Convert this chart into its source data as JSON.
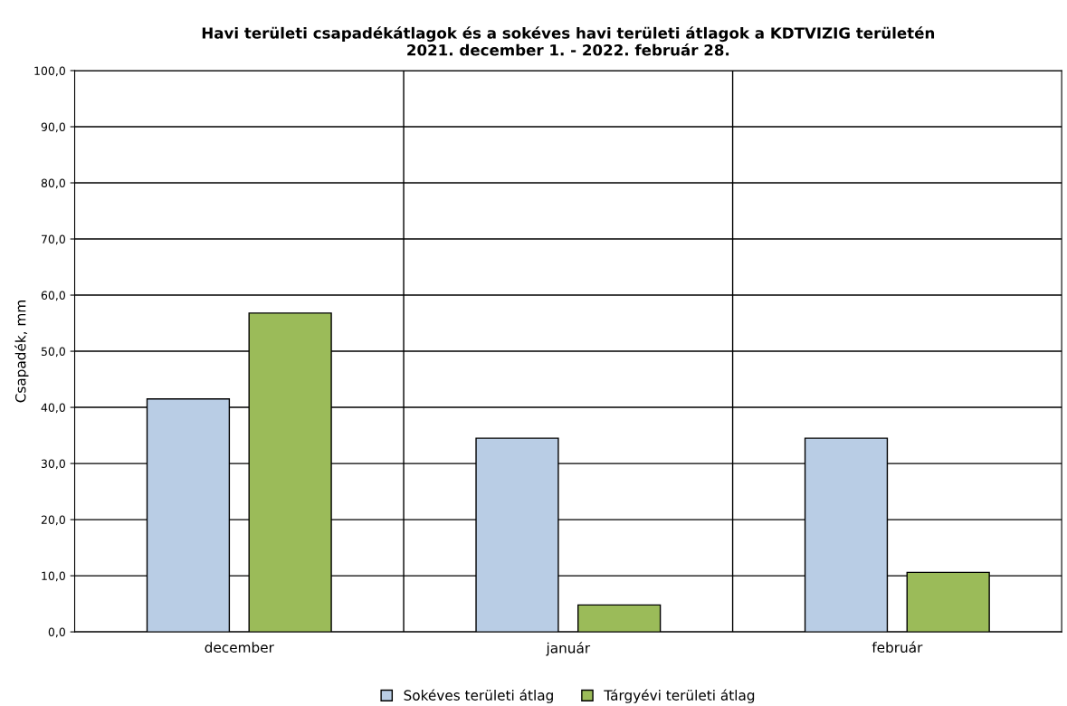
{
  "chart_data": {
    "type": "bar",
    "title": "Havi területi csapadékátlagok és a sokéves havi területi átlagok a KDTVIZIG területén\n2021. december 1. - 2022. február 28.",
    "ylabel": "Csapadék, mm",
    "categories": [
      "december",
      "január",
      "február"
    ],
    "series": [
      {
        "name": "Sokéves területi átlag",
        "color": "#b9cde5",
        "values": [
          41.5,
          34.5,
          34.5
        ]
      },
      {
        "name": "Tárgyévi területi átlag",
        "color": "#9bbb59",
        "values": [
          56.8,
          4.8,
          10.6
        ]
      }
    ],
    "ylim": [
      0,
      100
    ],
    "yticks": [
      {
        "value": 0,
        "label": "0,0"
      },
      {
        "value": 10,
        "label": "10,0"
      },
      {
        "value": 20,
        "label": "20,0"
      },
      {
        "value": 30,
        "label": "30,0"
      },
      {
        "value": 40,
        "label": "40,0"
      },
      {
        "value": 50,
        "label": "50,0"
      },
      {
        "value": 60,
        "label": "60,0"
      },
      {
        "value": 70,
        "label": "70,0"
      },
      {
        "value": 80,
        "label": "80,0"
      },
      {
        "value": 90,
        "label": "90,0"
      },
      {
        "value": 100,
        "label": "100,0"
      }
    ],
    "grid": true,
    "legend": "bottom"
  }
}
